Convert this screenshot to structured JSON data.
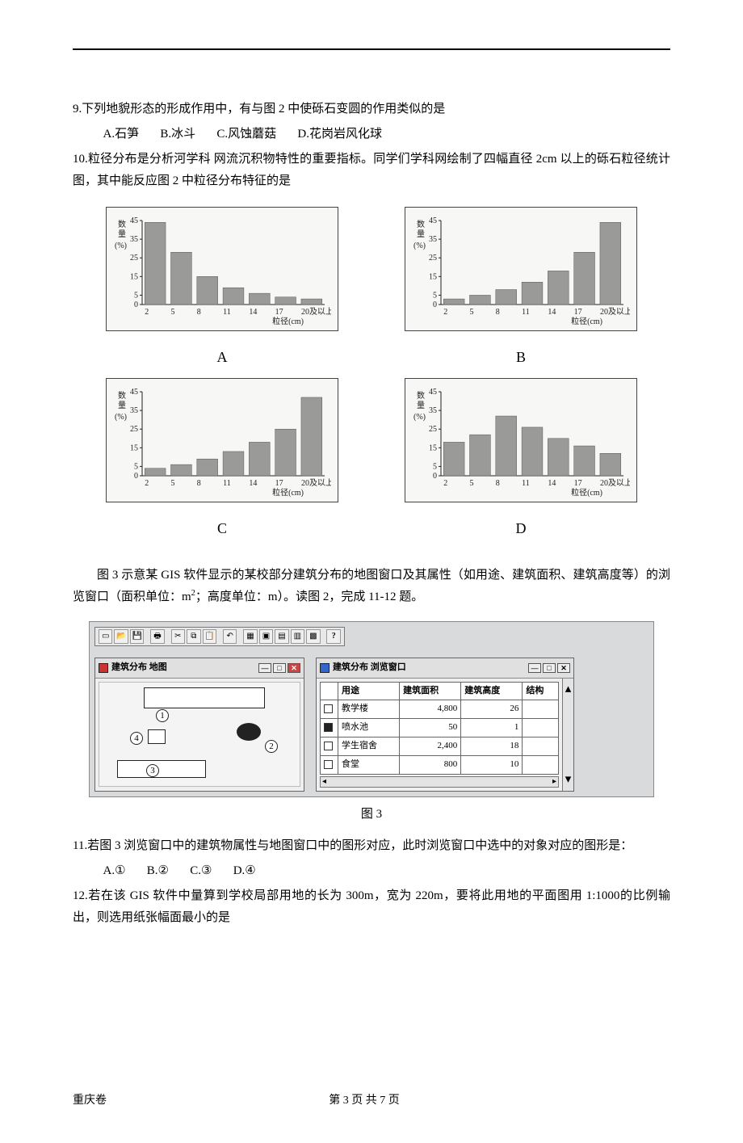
{
  "q9": {
    "stem": "9.下列地貌形态的形成作用中，有与图 2 中使砾石变圆的作用类似的是",
    "options": {
      "A": "A.石笋",
      "B": "B.冰斗",
      "C": "C.风蚀蘑菇",
      "D": "D.花岗岩风化球"
    }
  },
  "q10": {
    "stem": "10.粒径分布是分析河学科 网流沉积物特性的重要指标。同学们学科网绘制了四幅直径 2cm 以上的砾石粒径统计图，其中能反应图 2 中粒径分布特征的是"
  },
  "charts": {
    "ylab_top": "数",
    "ylab_mid": "量",
    "ylab_pct": "(%)",
    "ymax": 45,
    "yticks": [
      0,
      5,
      15,
      25,
      35,
      45
    ],
    "xticks": [
      "2",
      "5",
      "8",
      "11",
      "14",
      "17",
      "20及以上"
    ],
    "xunit": "粒径(cm)",
    "bar_color": "#9a9a98",
    "axis_color": "#222222",
    "bg": "#f7f7f5",
    "series": {
      "A": [
        44,
        28,
        15,
        9,
        6,
        4,
        3
      ],
      "B": [
        3,
        5,
        8,
        12,
        18,
        28,
        44
      ],
      "C": [
        4,
        6,
        9,
        13,
        18,
        25,
        42
      ],
      "D": [
        18,
        22,
        32,
        26,
        20,
        16,
        12
      ]
    },
    "labels": {
      "A": "A",
      "B": "B",
      "C": "C",
      "D": "D"
    }
  },
  "gis_intro": "图 3 示意某 GIS 软件显示的某校部分建筑分布的地图窗口及其属性（如用途、建筑面积、建筑高度等）的浏览窗口（面积单位：m²；高度单位：m）。读图 2，完成 11-12 题。",
  "gis": {
    "toolbar_help": "?",
    "map_title": "建筑分布 地图",
    "browse_title": "建筑分布 浏览窗口",
    "win_min": "—",
    "win_max": "□",
    "win_close": "✕",
    "marks": {
      "m1": "1",
      "m2": "2",
      "m3": "3",
      "m4": "4"
    },
    "table": {
      "headers": {
        "use": "用途",
        "area": "建筑面积",
        "height": "建筑高度",
        "struct": "结构"
      },
      "rows": [
        {
          "filled": false,
          "use": "教学楼",
          "area": "4,800",
          "height": "26",
          "struct": ""
        },
        {
          "filled": true,
          "use": "喷水池",
          "area": "50",
          "height": "1",
          "struct": ""
        },
        {
          "filled": false,
          "use": "学生宿舍",
          "area": "2,400",
          "height": "18",
          "struct": ""
        },
        {
          "filled": false,
          "use": "食堂",
          "area": "800",
          "height": "10",
          "struct": ""
        }
      ]
    },
    "scroll_up": "▴",
    "scroll_down": "▾",
    "scroll_left": "◂",
    "scroll_right": "▸"
  },
  "fig3_caption": "图 3",
  "q11": {
    "stem": "11.若图 3 浏览窗口中的建筑物属性与地图窗口中的图形对应，此时浏览窗口中选中的对象对应的图形是：",
    "options": {
      "A": "A.①",
      "B": "B.②",
      "C": "C.③",
      "D": "D.④"
    }
  },
  "q12": {
    "stem": "12.若在该 GIS 软件中量算到学校局部用地的长为 300m，宽为 220m，要将此用地的平面图用 1:1000的比例输出，则选用纸张幅面最小的是"
  },
  "footer": {
    "left": "重庆卷",
    "center": "第 3 页 共 7 页"
  }
}
